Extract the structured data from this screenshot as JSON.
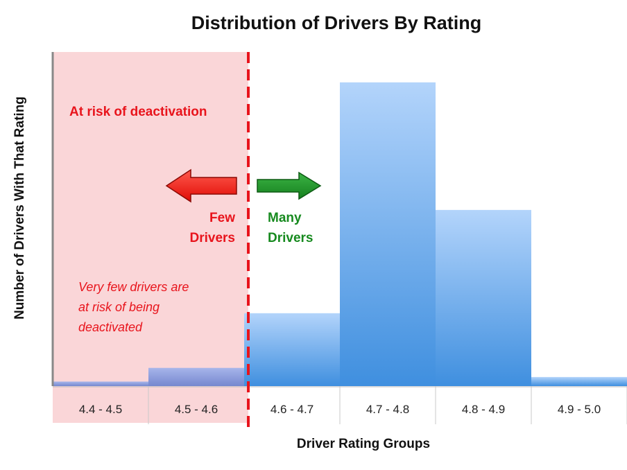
{
  "chart_data": {
    "type": "bar",
    "title": "Distribution of Drivers By Rating",
    "xlabel": "Driver Rating Groups",
    "ylabel": "Number of Drivers With That Rating",
    "categories": [
      "4.4 - 4.5",
      "4.5 - 4.6",
      "4.6 - 4.7",
      "4.7 - 4.8",
      "4.8 - 4.9",
      "4.9 - 5.0"
    ],
    "values": [
      1.5,
      6,
      24,
      100,
      58,
      3
    ],
    "ylim": [
      0,
      110
    ],
    "grid": false,
    "annotations": {
      "risk_zone_label": "At risk of deactivation",
      "few_line1": "Few",
      "few_line2": "Drivers",
      "many_line1": "Many",
      "many_line2": "Drivers",
      "note_line1": "Very few drivers are",
      "note_line2": "at risk of being",
      "note_line3": "deactivated"
    },
    "colors": {
      "bar_top": "#b3d4fb",
      "bar_bottom": "#3f8fdf",
      "risk_bar_top": "#a7b5ea",
      "risk_bar_bottom": "#7687cf",
      "risk_zone": "#fad6d8",
      "threshold_line": "#e8141c",
      "arrow_left": "#ff1a12",
      "arrow_right": "#1f9a2a"
    }
  }
}
